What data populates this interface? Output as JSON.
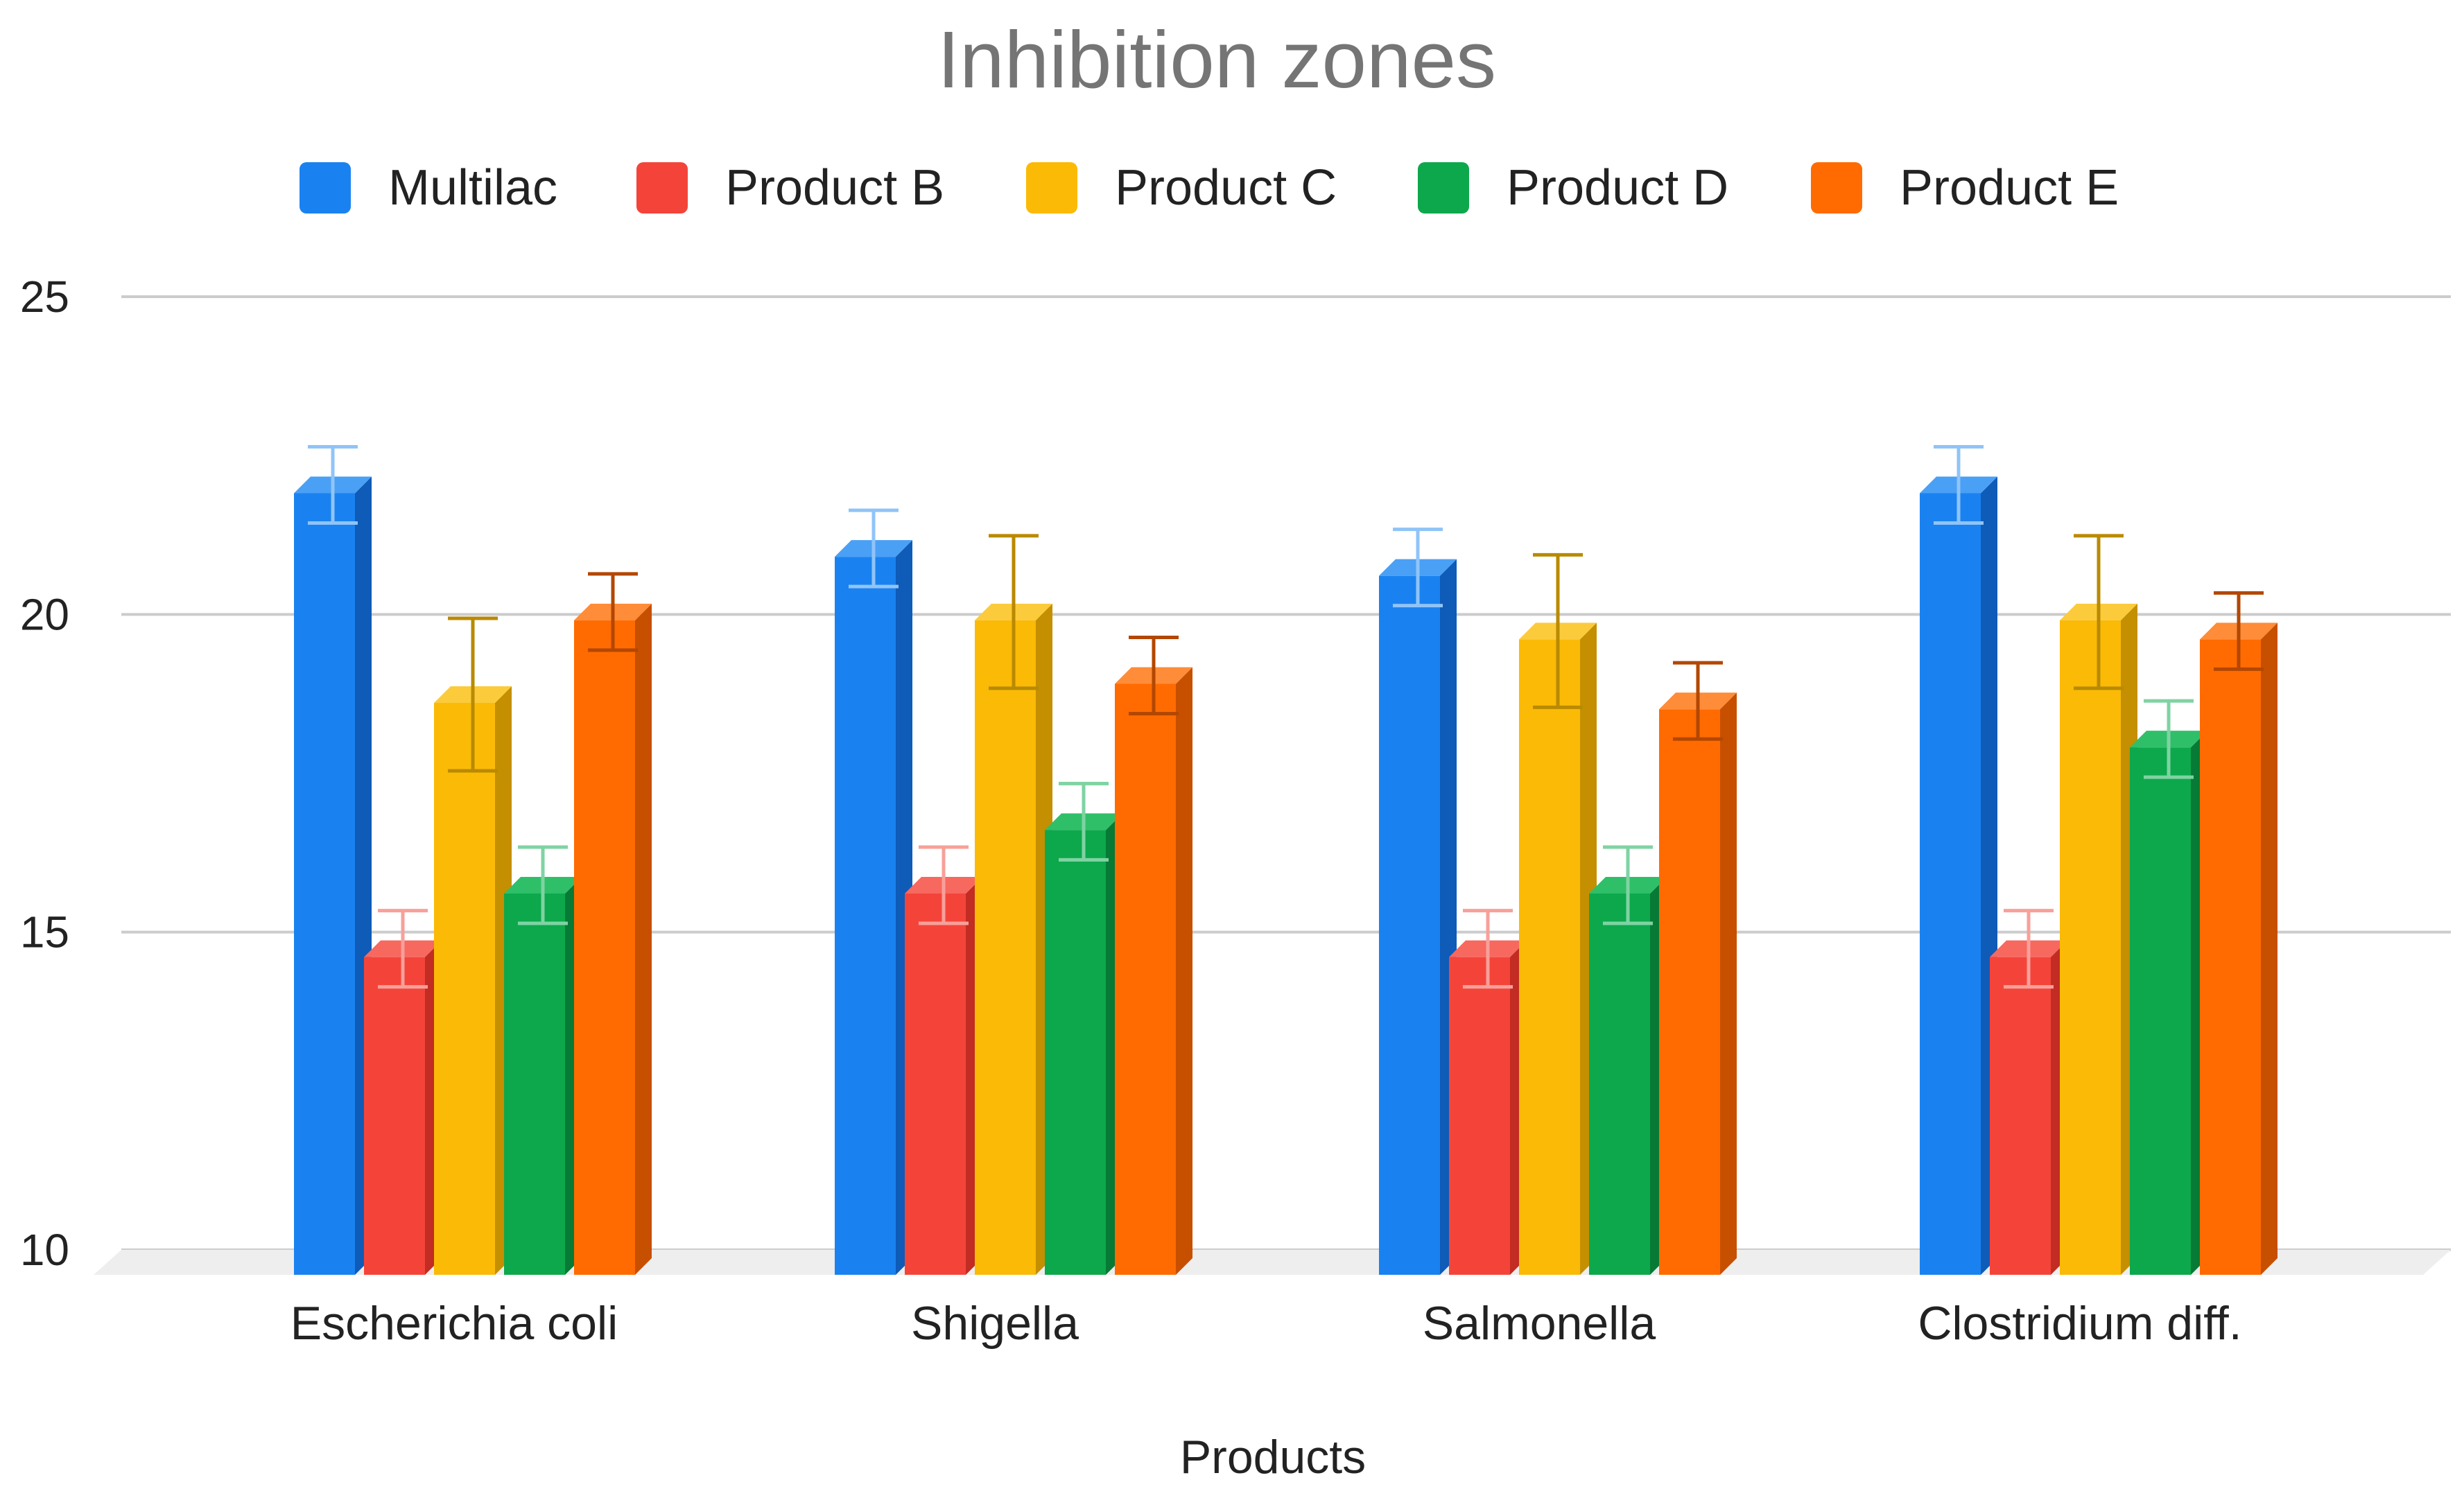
{
  "chart_data": {
    "type": "bar",
    "style": "3d-grouped-with-error-bars",
    "title": "Inhibition zones",
    "xlabel": "Products",
    "ylabel": "",
    "ylim": [
      10,
      25
    ],
    "yticks": [
      10,
      15,
      20,
      25
    ],
    "grid": true,
    "legend_position": "top-center",
    "categories": [
      "Escherichia coli",
      "Shigella",
      "Salmonella",
      "Clostridium diff."
    ],
    "series": [
      {
        "name": "Multilac",
        "color": "#1A82F0",
        "side_color": "#0E5BB8",
        "top_color": "#4AA0F5",
        "error_color": "#90C4F8",
        "values": [
          22.3,
          21.3,
          21.0,
          22.3
        ],
        "error": [
          0.6,
          0.6,
          0.6,
          0.6
        ]
      },
      {
        "name": "Product B",
        "color": "#F4443A",
        "side_color": "#C22C23",
        "top_color": "#F7685F",
        "error_color": "#F8A09A",
        "values": [
          15.0,
          16.0,
          15.0,
          15.0
        ],
        "error": [
          0.6,
          0.6,
          0.6,
          0.6
        ]
      },
      {
        "name": "Product C",
        "color": "#FBBA06",
        "side_color": "#C48F00",
        "top_color": "#FCCB3C",
        "error_color": "#B98A00",
        "values": [
          19.0,
          20.3,
          20.0,
          20.3
        ],
        "error": [
          1.2,
          1.2,
          1.2,
          1.2
        ]
      },
      {
        "name": "Product D",
        "color": "#0DA84C",
        "side_color": "#077A35",
        "top_color": "#2FBF69",
        "error_color": "#7FD3A2",
        "values": [
          16.0,
          17.0,
          16.0,
          18.3
        ],
        "error": [
          0.6,
          0.6,
          0.6,
          0.6
        ]
      },
      {
        "name": "Product E",
        "color": "#FF6B00",
        "side_color": "#C74F00",
        "top_color": "#FF8C38",
        "error_color": "#B34700",
        "values": [
          20.3,
          19.3,
          18.9,
          20.0
        ],
        "error": [
          0.6,
          0.6,
          0.6,
          0.6
        ]
      }
    ]
  },
  "colors": {
    "gridline": "#CCCCCC",
    "floor": "#EEEEEE",
    "title": "#757575",
    "text": "#222222"
  }
}
